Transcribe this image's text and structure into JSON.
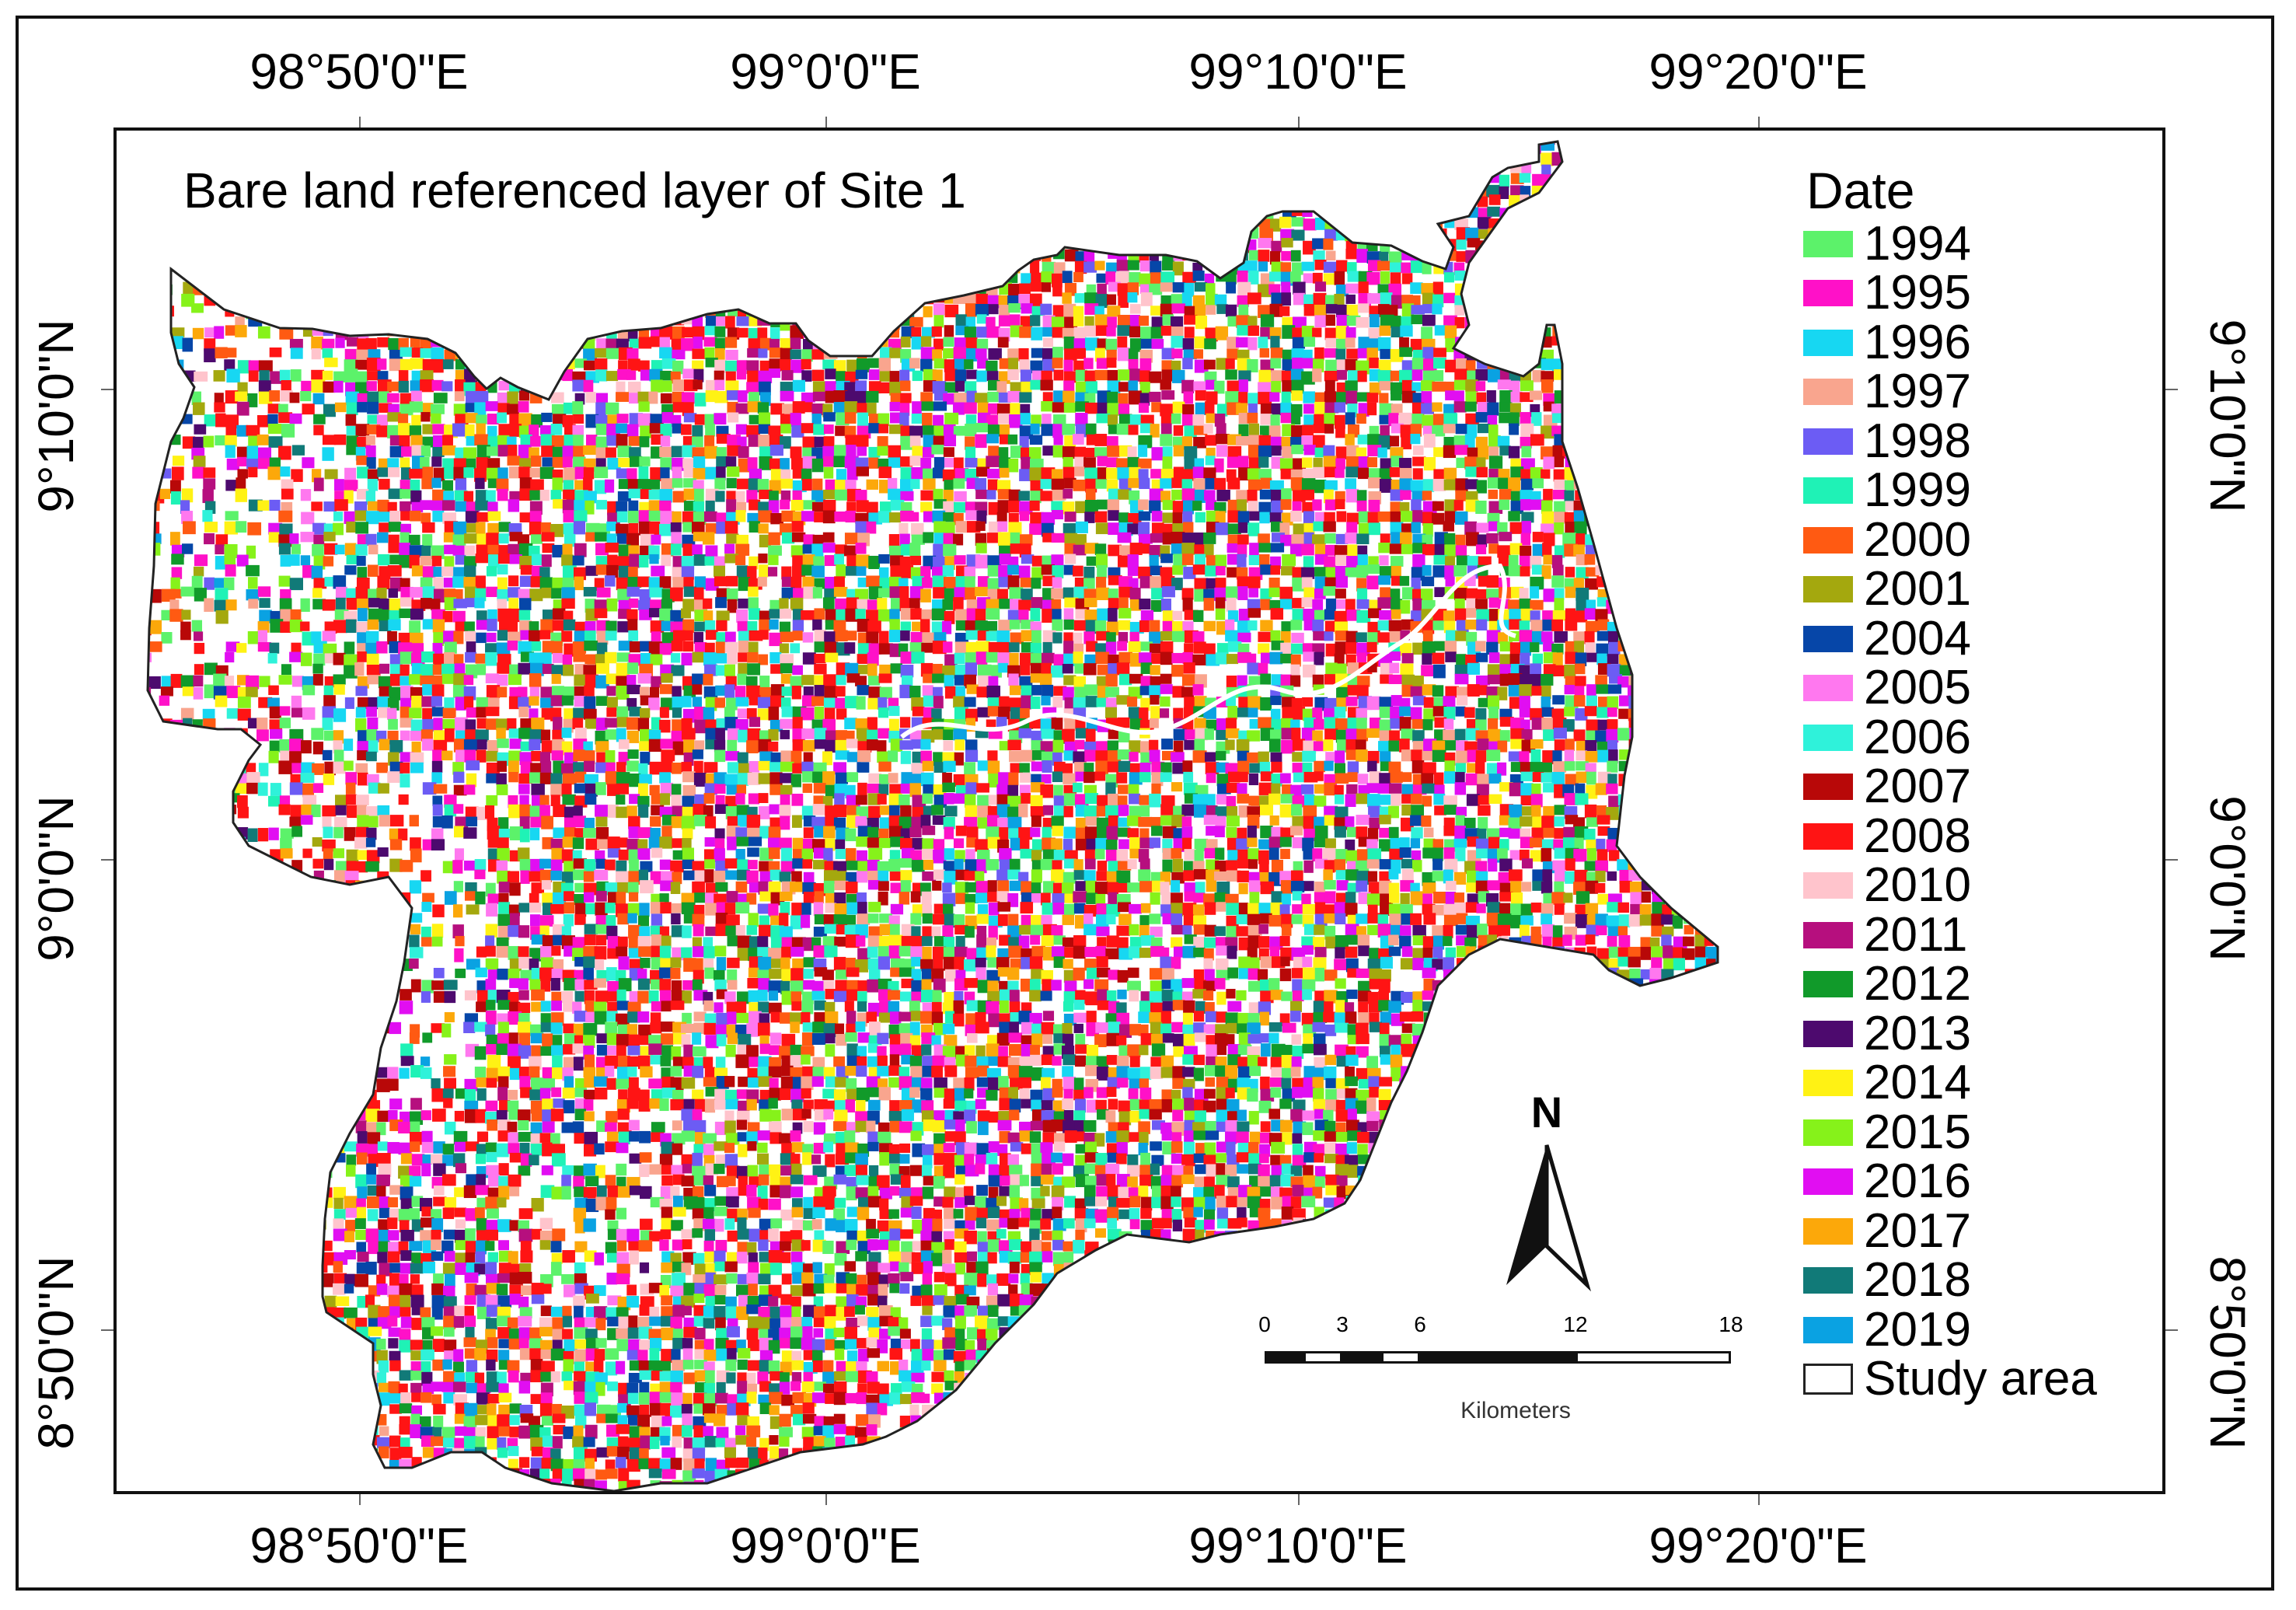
{
  "title": "Bare land referenced layer of Site 1",
  "graticule": {
    "longitude_labels": [
      "98°50'0\"E",
      "99°0'0\"E",
      "99°10'0\"E",
      "99°20'0\"E"
    ],
    "latitude_labels": [
      "9°10'0\"N",
      "9°0'0\"N",
      "8°50'0\"N"
    ]
  },
  "legend": {
    "title": "Date",
    "items": [
      {
        "label": "1994",
        "color": "#5cf26a"
      },
      {
        "label": "1995",
        "color": "#ff11c8"
      },
      {
        "label": "1996",
        "color": "#17d7f2"
      },
      {
        "label": "1997",
        "color": "#f9a58e"
      },
      {
        "label": "1998",
        "color": "#6c5cf4"
      },
      {
        "label": "1999",
        "color": "#1ff2b6"
      },
      {
        "label": "2000",
        "color": "#ff5a12"
      },
      {
        "label": "2001",
        "color": "#a4a80e"
      },
      {
        "label": "2004",
        "color": "#0646a8"
      },
      {
        "label": "2005",
        "color": "#ff78ef"
      },
      {
        "label": "2006",
        "color": "#2ff2da"
      },
      {
        "label": "2007",
        "color": "#b80808"
      },
      {
        "label": "2008",
        "color": "#ff1414"
      },
      {
        "label": "2010",
        "color": "#ffc4cc"
      },
      {
        "label": "2011",
        "color": "#b60f7e"
      },
      {
        "label": "2012",
        "color": "#119a2a"
      },
      {
        "label": "2013",
        "color": "#4d0a6e"
      },
      {
        "label": "2014",
        "color": "#fff214"
      },
      {
        "label": "2015",
        "color": "#86f21a"
      },
      {
        "label": "2016",
        "color": "#e10ef2"
      },
      {
        "label": "2017",
        "color": "#fca80a"
      },
      {
        "label": "2018",
        "color": "#117a78"
      },
      {
        "label": "2019",
        "color": "#0aa2e2"
      }
    ],
    "study_area_label": "Study area"
  },
  "north_arrow": {
    "letter": "N"
  },
  "scale_bar": {
    "tick_labels": [
      "0",
      "3",
      "6",
      "12",
      "18"
    ],
    "unit": "Kilometers"
  },
  "colors": {
    "frame": "#111111",
    "background": "#ffffff",
    "boundary": "#222222",
    "river": "#ffffff"
  }
}
